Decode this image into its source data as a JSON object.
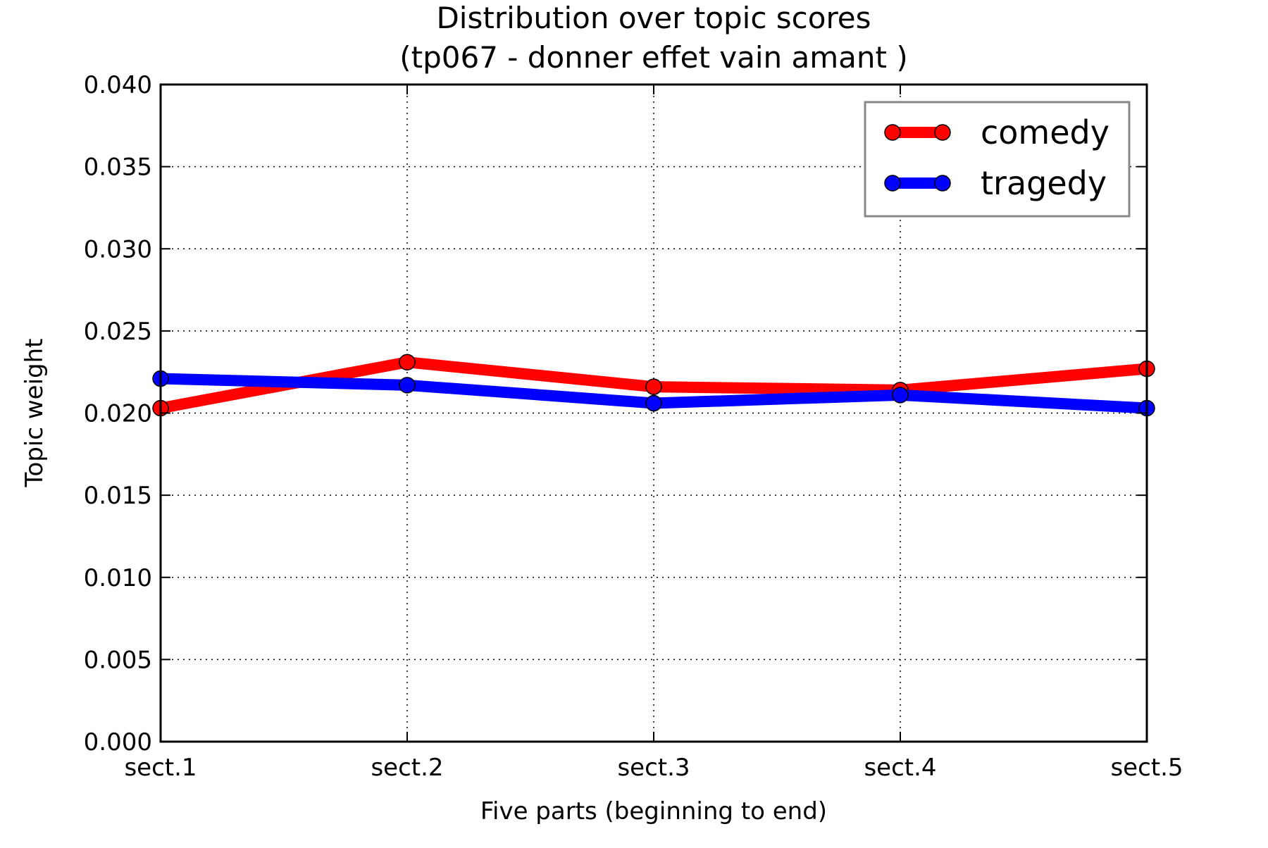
{
  "chart_data": {
    "type": "line",
    "title": "Distribution over topic scores",
    "subtitle": "(tp067 - donner effet vain amant )",
    "xlabel": "Five parts (beginning to end)",
    "ylabel": "Topic weight",
    "categories": [
      "sect.1",
      "sect.2",
      "sect.3",
      "sect.4",
      "sect.5"
    ],
    "ylim": [
      0.0,
      0.04
    ],
    "yticks": [
      0.0,
      0.005,
      0.01,
      0.015,
      0.02,
      0.025,
      0.03,
      0.035,
      0.04
    ],
    "ytick_labels": [
      "0.000",
      "0.005",
      "0.010",
      "0.015",
      "0.020",
      "0.025",
      "0.030",
      "0.035",
      "0.040"
    ],
    "grid": true,
    "legend_position": "top-right",
    "series": [
      {
        "name": "comedy",
        "color": "#ff0000",
        "values": [
          0.0203,
          0.0231,
          0.0216,
          0.0214,
          0.0227
        ]
      },
      {
        "name": "tragedy",
        "color": "#0000ff",
        "values": [
          0.0221,
          0.0217,
          0.0206,
          0.0211,
          0.0203
        ]
      }
    ]
  }
}
